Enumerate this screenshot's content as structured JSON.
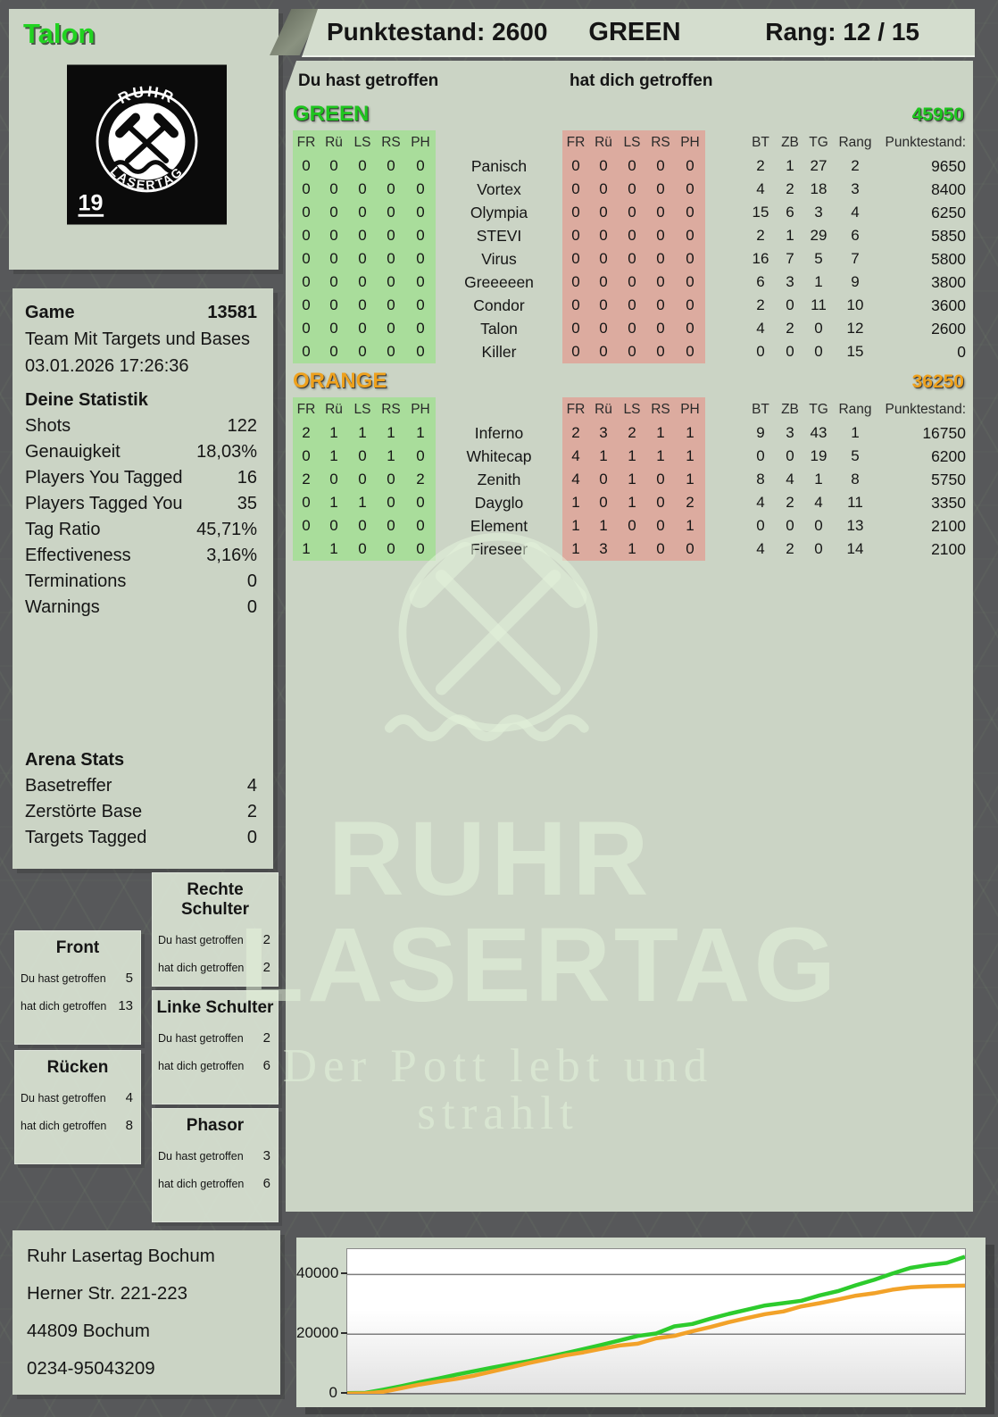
{
  "header": {
    "player_name": "Talon",
    "score_label": "Punktestand:",
    "score": "2600",
    "team": "GREEN",
    "rank_label": "Rang:",
    "rank": "12 / 15"
  },
  "logo": {
    "arc_top": "RUHR",
    "arc_bottom": "LASERTAG",
    "number": "19"
  },
  "game_panel": {
    "game_label": "Game",
    "game_number": "13581",
    "mode": "Team Mit Targets und Bases",
    "datetime": "03.01.2026 17:26:36",
    "stats_title": "Deine Statistik",
    "stats": [
      {
        "label": "Shots",
        "value": "122"
      },
      {
        "label": "Genauigkeit",
        "value": "18,03%"
      },
      {
        "label": "Players You Tagged",
        "value": "16"
      },
      {
        "label": "Players Tagged You",
        "value": "35"
      },
      {
        "label": "Tag Ratio",
        "value": "45,71%"
      },
      {
        "label": "Effectiveness",
        "value": "3,16%"
      },
      {
        "label": "Terminations",
        "value": "0"
      },
      {
        "label": "Warnings",
        "value": "0"
      }
    ],
    "arena_title": "Arena Stats",
    "arena_stats": [
      {
        "label": "Basetreffer",
        "value": "4"
      },
      {
        "label": "Zerstörte Base",
        "value": "2"
      },
      {
        "label": "Targets Tagged",
        "value": "0"
      }
    ]
  },
  "hit_zone_row_labels": {
    "you_hit": "Du hast getroffen",
    "hit_you": "hat dich getroffen"
  },
  "hit_zones": [
    {
      "title": "Front",
      "you_hit": "5",
      "hit_you": "13"
    },
    {
      "title": "Rücken",
      "you_hit": "4",
      "hit_you": "8"
    },
    {
      "title": "Rechte Schulter",
      "you_hit": "2",
      "hit_you": "2"
    },
    {
      "title": "Linke Schulter",
      "you_hit": "2",
      "hit_you": "6"
    },
    {
      "title": "Phasor",
      "you_hit": "3",
      "hit_you": "6"
    }
  ],
  "contact": {
    "lines": [
      "Ruhr Lasertag Bochum",
      "Herner Str. 221-223",
      "44809 Bochum",
      "0234-95043209"
    ]
  },
  "scoreboard": {
    "col_left_title": "Du hast getroffen",
    "col_right_title": "hat dich getroffen",
    "hit_columns": [
      "FR",
      "Rü",
      "LS",
      "RS",
      "PH"
    ],
    "stat_columns": [
      "BT",
      "ZB",
      "TG",
      "Rang",
      "Punktestand:"
    ],
    "teams": [
      {
        "name": "GREEN",
        "color": "#1fc51f",
        "total": "45950",
        "players": [
          {
            "name": "Panisch",
            "you_hit": [
              0,
              0,
              0,
              0,
              0
            ],
            "hit_you": [
              0,
              0,
              0,
              0,
              0
            ],
            "bt": 2,
            "zb": 1,
            "tg": 27,
            "rang": 2,
            "punktestand": 9650
          },
          {
            "name": "Vortex",
            "you_hit": [
              0,
              0,
              0,
              0,
              0
            ],
            "hit_you": [
              0,
              0,
              0,
              0,
              0
            ],
            "bt": 4,
            "zb": 2,
            "tg": 18,
            "rang": 3,
            "punktestand": 8400
          },
          {
            "name": "Olympia",
            "you_hit": [
              0,
              0,
              0,
              0,
              0
            ],
            "hit_you": [
              0,
              0,
              0,
              0,
              0
            ],
            "bt": 15,
            "zb": 6,
            "tg": 3,
            "rang": 4,
            "punktestand": 6250
          },
          {
            "name": "STEVI",
            "you_hit": [
              0,
              0,
              0,
              0,
              0
            ],
            "hit_you": [
              0,
              0,
              0,
              0,
              0
            ],
            "bt": 2,
            "zb": 1,
            "tg": 29,
            "rang": 6,
            "punktestand": 5850
          },
          {
            "name": "Virus",
            "you_hit": [
              0,
              0,
              0,
              0,
              0
            ],
            "hit_you": [
              0,
              0,
              0,
              0,
              0
            ],
            "bt": 16,
            "zb": 7,
            "tg": 5,
            "rang": 7,
            "punktestand": 5800
          },
          {
            "name": "Greeeeen",
            "you_hit": [
              0,
              0,
              0,
              0,
              0
            ],
            "hit_you": [
              0,
              0,
              0,
              0,
              0
            ],
            "bt": 6,
            "zb": 3,
            "tg": 1,
            "rang": 9,
            "punktestand": 3800
          },
          {
            "name": "Condor",
            "you_hit": [
              0,
              0,
              0,
              0,
              0
            ],
            "hit_you": [
              0,
              0,
              0,
              0,
              0
            ],
            "bt": 2,
            "zb": 0,
            "tg": 11,
            "rang": 10,
            "punktestand": 3600
          },
          {
            "name": "Talon",
            "you_hit": [
              0,
              0,
              0,
              0,
              0
            ],
            "hit_you": [
              0,
              0,
              0,
              0,
              0
            ],
            "bt": 4,
            "zb": 2,
            "tg": 0,
            "rang": 12,
            "punktestand": 2600
          },
          {
            "name": "Killer",
            "you_hit": [
              0,
              0,
              0,
              0,
              0
            ],
            "hit_you": [
              0,
              0,
              0,
              0,
              0
            ],
            "bt": 0,
            "zb": 0,
            "tg": 0,
            "rang": 15,
            "punktestand": 0
          }
        ]
      },
      {
        "name": "ORANGE",
        "color": "#eea11d",
        "total": "36250",
        "players": [
          {
            "name": "Inferno",
            "you_hit": [
              2,
              1,
              1,
              1,
              1
            ],
            "hit_you": [
              2,
              3,
              2,
              1,
              1
            ],
            "bt": 9,
            "zb": 3,
            "tg": 43,
            "rang": 1,
            "punktestand": 16750
          },
          {
            "name": "Whitecap",
            "you_hit": [
              0,
              1,
              0,
              1,
              0
            ],
            "hit_you": [
              4,
              1,
              1,
              1,
              1
            ],
            "bt": 0,
            "zb": 0,
            "tg": 19,
            "rang": 5,
            "punktestand": 6200
          },
          {
            "name": "Zenith",
            "you_hit": [
              2,
              0,
              0,
              0,
              2
            ],
            "hit_you": [
              4,
              0,
              1,
              0,
              1
            ],
            "bt": 8,
            "zb": 4,
            "tg": 1,
            "rang": 8,
            "punktestand": 5750
          },
          {
            "name": "Dayglo",
            "you_hit": [
              0,
              1,
              1,
              0,
              0
            ],
            "hit_you": [
              1,
              0,
              1,
              0,
              2
            ],
            "bt": 4,
            "zb": 2,
            "tg": 4,
            "rang": 11,
            "punktestand": 3350
          },
          {
            "name": "Element",
            "you_hit": [
              0,
              0,
              0,
              0,
              0
            ],
            "hit_you": [
              1,
              1,
              0,
              0,
              1
            ],
            "bt": 0,
            "zb": 0,
            "tg": 0,
            "rang": 13,
            "punktestand": 2100
          },
          {
            "name": "Fireseer",
            "you_hit": [
              1,
              1,
              0,
              0,
              0
            ],
            "hit_you": [
              1,
              3,
              1,
              0,
              0
            ],
            "bt": 4,
            "zb": 2,
            "tg": 0,
            "rang": 14,
            "punktestand": 2100
          }
        ]
      }
    ]
  },
  "watermark": {
    "line1": "RUHR",
    "line2": "LASERTAG",
    "tagline": "Der Pott lebt und strahlt"
  },
  "chart_data": {
    "type": "line",
    "title": "",
    "xlabel": "",
    "ylabel": "",
    "yticks": [
      0,
      20000,
      40000
    ],
    "ylim": [
      0,
      48500
    ],
    "grid": true,
    "legend": "none",
    "series": [
      {
        "name": "GREEN",
        "color": "#2dcb2d",
        "values": [
          200,
          300,
          1400,
          2600,
          3900,
          5100,
          6400,
          7600,
          8800,
          9900,
          11000,
          12300,
          13600,
          15000,
          16400,
          17900,
          19400,
          20200,
          22600,
          23400,
          25200,
          26800,
          28200,
          29600,
          30400,
          31200,
          33000,
          34400,
          36400,
          38200,
          40300,
          42200,
          43200,
          43900,
          45950
        ]
      },
      {
        "name": "ORANGE",
        "color": "#f2a229",
        "values": [
          100,
          150,
          700,
          1900,
          3100,
          4100,
          5000,
          6100,
          7500,
          8900,
          10300,
          11600,
          12900,
          13900,
          15100,
          16200,
          16800,
          18600,
          19400,
          21000,
          22400,
          24000,
          25400,
          26700,
          27600,
          29300,
          30400,
          31600,
          32900,
          33700,
          34900,
          35700,
          36000,
          36150,
          36250
        ]
      }
    ]
  }
}
